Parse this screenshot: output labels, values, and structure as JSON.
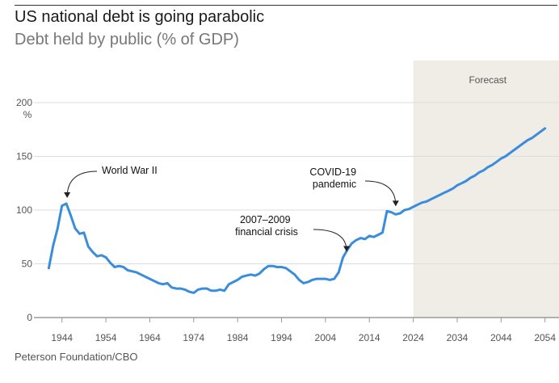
{
  "header": {
    "title": "US national debt is going parabolic",
    "subtitle": "Debt held by public (% of GDP)"
  },
  "footer": {
    "source": "Peterson Foundation/CBO"
  },
  "colors": {
    "line": "#3a8ddc",
    "forecast_band": "#efede6",
    "grid": "#dddddd",
    "axis": "#555555"
  },
  "chart_data": {
    "type": "line",
    "title": "US national debt is going parabolic",
    "subtitle": "Debt held by public (% of GDP)",
    "y_unit": "%",
    "xlim": [
      1940,
      2058
    ],
    "ylim": [
      0,
      200
    ],
    "y_ticks": [
      0,
      50,
      100,
      150,
      200
    ],
    "x_ticks": [
      1944,
      1954,
      1964,
      1974,
      1984,
      1994,
      2004,
      2014,
      2024,
      2034,
      2044,
      2054
    ],
    "forecast_start": 2024,
    "forecast_label": "Forecast",
    "grid": true,
    "series": [
      {
        "x": [
          1941,
          1942,
          1943,
          1944,
          1945,
          1946,
          1947,
          1948,
          1949,
          1950,
          1951,
          1952,
          1953,
          1954,
          1955,
          1956,
          1957,
          1958,
          1959,
          1960,
          1961,
          1962,
          1963,
          1964,
          1965,
          1966,
          1967,
          1968,
          1969,
          1970,
          1971,
          1972,
          1973,
          1974,
          1975,
          1976,
          1977,
          1978,
          1979,
          1980,
          1981,
          1982,
          1983,
          1984,
          1985,
          1986,
          1987,
          1988,
          1989,
          1990,
          1991,
          1992,
          1993,
          1994,
          1995,
          1996,
          1997,
          1998,
          1999,
          2000,
          2001,
          2002,
          2003,
          2004,
          2005,
          2006,
          2007,
          2008,
          2009,
          2010,
          2011,
          2012,
          2013,
          2014,
          2015,
          2016,
          2017,
          2018,
          2019,
          2020,
          2021,
          2022,
          2023,
          2024,
          2025,
          2026,
          2027,
          2028,
          2029,
          2030,
          2031,
          2032,
          2033,
          2034,
          2035,
          2036,
          2037,
          2038,
          2039,
          2040,
          2041,
          2042,
          2043,
          2044,
          2045,
          2046,
          2047,
          2048,
          2049,
          2050,
          2051,
          2052,
          2053,
          2054
        ],
        "values": [
          46,
          67,
          83,
          104,
          106,
          95,
          83,
          78,
          79,
          66,
          61,
          57,
          58,
          56,
          51,
          47,
          48,
          47,
          44,
          43,
          42,
          40,
          38,
          36,
          34,
          32,
          31,
          32,
          28,
          27,
          27,
          26,
          24,
          23,
          26,
          27,
          27,
          25,
          25,
          26,
          25,
          31,
          33,
          35,
          38,
          39,
          40,
          39,
          41,
          45,
          48,
          48,
          47,
          47,
          46,
          43,
          40,
          35,
          32,
          33,
          35,
          36,
          36,
          36,
          35,
          36,
          42,
          56,
          63,
          69,
          72,
          74,
          73,
          76,
          75,
          77,
          79,
          99,
          98,
          96,
          97,
          100,
          101,
          103,
          105,
          107,
          108,
          110,
          112,
          114,
          116,
          118,
          120,
          123,
          125,
          127,
          130,
          132,
          135,
          137,
          140,
          142,
          145,
          148,
          150,
          153,
          156,
          159,
          162,
          165,
          167,
          170,
          173,
          176
        ]
      }
    ],
    "annotations": [
      {
        "text": "World War II",
        "x": 1945,
        "y": 106
      },
      {
        "lines": [
          "COVID-19",
          "pandemic"
        ],
        "x": 2020,
        "y": 99
      },
      {
        "lines": [
          "2007–2009",
          "financial crisis"
        ],
        "x": 2009,
        "y": 56
      }
    ]
  }
}
